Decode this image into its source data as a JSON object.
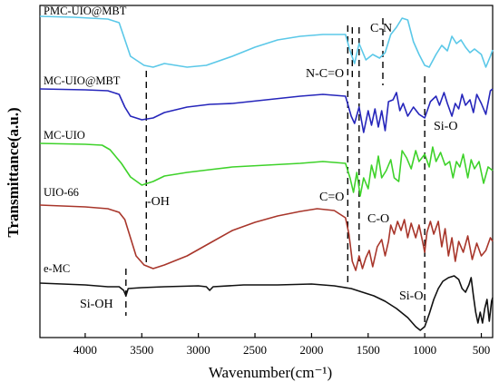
{
  "chart_data": {
    "type": "line",
    "title": "",
    "xlabel": "Wavenumber(cm⁻¹)",
    "ylabel": "Transmittance(a.u.)",
    "xlim": [
      4400,
      400
    ],
    "x_reversed": true,
    "x_ticks": [
      4000,
      3500,
      3000,
      2500,
      2000,
      1500,
      1000,
      500
    ],
    "y_ticks_shown": false,
    "grid": false,
    "legend": "none",
    "series": [
      {
        "name": "PMC-UIO@MBT",
        "color": "#5bc8e8",
        "points": [
          [
            4400,
            18
          ],
          [
            4100,
            19
          ],
          [
            3800,
            21
          ],
          [
            3700,
            25
          ],
          [
            3600,
            62
          ],
          [
            3480,
            72
          ],
          [
            3400,
            74
          ],
          [
            3300,
            70
          ],
          [
            3100,
            74
          ],
          [
            2930,
            72
          ],
          [
            2700,
            62
          ],
          [
            2500,
            52
          ],
          [
            2300,
            44
          ],
          [
            2100,
            40
          ],
          [
            1900,
            38
          ],
          [
            1700,
            38
          ],
          [
            1660,
            56
          ],
          [
            1620,
            70
          ],
          [
            1580,
            48
          ],
          [
            1520,
            66
          ],
          [
            1460,
            60
          ],
          [
            1400,
            64
          ],
          [
            1350,
            58
          ],
          [
            1300,
            38
          ],
          [
            1250,
            30
          ],
          [
            1200,
            20
          ],
          [
            1150,
            22
          ],
          [
            1100,
            46
          ],
          [
            1050,
            60
          ],
          [
            1000,
            72
          ],
          [
            960,
            74
          ],
          [
            900,
            60
          ],
          [
            850,
            50
          ],
          [
            800,
            56
          ],
          [
            760,
            40
          ],
          [
            720,
            48
          ],
          [
            680,
            44
          ],
          [
            640,
            52
          ],
          [
            600,
            58
          ],
          [
            560,
            54
          ],
          [
            500,
            60
          ],
          [
            460,
            74
          ],
          [
            420,
            62
          ],
          [
            400,
            55
          ]
        ]
      },
      {
        "name": "MC-UIO@MBT",
        "color": "#2626bb",
        "points": [
          [
            4400,
            98
          ],
          [
            4000,
            99
          ],
          [
            3800,
            100
          ],
          [
            3700,
            104
          ],
          [
            3650,
            118
          ],
          [
            3600,
            128
          ],
          [
            3500,
            132
          ],
          [
            3400,
            130
          ],
          [
            3300,
            124
          ],
          [
            3100,
            118
          ],
          [
            2900,
            115
          ],
          [
            2700,
            114
          ],
          [
            2400,
            110
          ],
          [
            2100,
            106
          ],
          [
            1900,
            104
          ],
          [
            1700,
            106
          ],
          [
            1650,
            128
          ],
          [
            1620,
            136
          ],
          [
            1580,
            118
          ],
          [
            1540,
            146
          ],
          [
            1500,
            122
          ],
          [
            1470,
            138
          ],
          [
            1440,
            120
          ],
          [
            1410,
            140
          ],
          [
            1380,
            122
          ],
          [
            1350,
            144
          ],
          [
            1320,
            112
          ],
          [
            1280,
            110
          ],
          [
            1250,
            102
          ],
          [
            1220,
            122
          ],
          [
            1190,
            114
          ],
          [
            1150,
            128
          ],
          [
            1100,
            118
          ],
          [
            1050,
            126
          ],
          [
            1000,
            130
          ],
          [
            950,
            112
          ],
          [
            900,
            106
          ],
          [
            870,
            116
          ],
          [
            830,
            102
          ],
          [
            800,
            114
          ],
          [
            760,
            128
          ],
          [
            730,
            114
          ],
          [
            700,
            120
          ],
          [
            670,
            104
          ],
          [
            640,
            116
          ],
          [
            600,
            110
          ],
          [
            570,
            124
          ],
          [
            540,
            104
          ],
          [
            500,
            114
          ],
          [
            460,
            126
          ],
          [
            420,
            100
          ],
          [
            400,
            98
          ]
        ]
      },
      {
        "name": "MC-UIO",
        "color": "#3ed22a",
        "points": [
          [
            4400,
            158
          ],
          [
            4000,
            159
          ],
          [
            3850,
            160
          ],
          [
            3780,
            165
          ],
          [
            3680,
            180
          ],
          [
            3600,
            195
          ],
          [
            3500,
            204
          ],
          [
            3400,
            200
          ],
          [
            3300,
            194
          ],
          [
            3100,
            190
          ],
          [
            2900,
            187
          ],
          [
            2700,
            184
          ],
          [
            2400,
            182
          ],
          [
            2100,
            180
          ],
          [
            1900,
            178
          ],
          [
            1700,
            180
          ],
          [
            1660,
            196
          ],
          [
            1630,
            212
          ],
          [
            1600,
            190
          ],
          [
            1570,
            216
          ],
          [
            1540,
            196
          ],
          [
            1500,
            208
          ],
          [
            1470,
            182
          ],
          [
            1440,
            196
          ],
          [
            1410,
            172
          ],
          [
            1380,
            196
          ],
          [
            1340,
            188
          ],
          [
            1300,
            176
          ],
          [
            1270,
            196
          ],
          [
            1230,
            200
          ],
          [
            1200,
            166
          ],
          [
            1160,
            174
          ],
          [
            1120,
            186
          ],
          [
            1080,
            166
          ],
          [
            1050,
            178
          ],
          [
            1000,
            170
          ],
          [
            960,
            184
          ],
          [
            930,
            162
          ],
          [
            900,
            178
          ],
          [
            860,
            168
          ],
          [
            820,
            182
          ],
          [
            780,
            178
          ],
          [
            750,
            196
          ],
          [
            720,
            178
          ],
          [
            690,
            184
          ],
          [
            660,
            170
          ],
          [
            620,
            196
          ],
          [
            590,
            176
          ],
          [
            560,
            186
          ],
          [
            520,
            178
          ],
          [
            480,
            202
          ],
          [
            440,
            184
          ],
          [
            400,
            188
          ]
        ]
      },
      {
        "name": "UIO-66",
        "color": "#a8362b",
        "points": [
          [
            4400,
            226
          ],
          [
            4000,
            228
          ],
          [
            3800,
            230
          ],
          [
            3700,
            234
          ],
          [
            3650,
            242
          ],
          [
            3600,
            262
          ],
          [
            3550,
            282
          ],
          [
            3480,
            292
          ],
          [
            3400,
            296
          ],
          [
            3300,
            292
          ],
          [
            3100,
            282
          ],
          [
            2900,
            268
          ],
          [
            2700,
            254
          ],
          [
            2500,
            245
          ],
          [
            2300,
            238
          ],
          [
            2100,
            233
          ],
          [
            1950,
            230
          ],
          [
            1800,
            232
          ],
          [
            1700,
            240
          ],
          [
            1670,
            258
          ],
          [
            1640,
            288
          ],
          [
            1610,
            298
          ],
          [
            1580,
            282
          ],
          [
            1550,
            296
          ],
          [
            1520,
            284
          ],
          [
            1490,
            276
          ],
          [
            1460,
            294
          ],
          [
            1420,
            272
          ],
          [
            1380,
            264
          ],
          [
            1350,
            282
          ],
          [
            1320,
            266
          ],
          [
            1300,
            248
          ],
          [
            1270,
            258
          ],
          [
            1240,
            244
          ],
          [
            1210,
            254
          ],
          [
            1180,
            242
          ],
          [
            1150,
            262
          ],
          [
            1120,
            246
          ],
          [
            1080,
            262
          ],
          [
            1050,
            248
          ],
          [
            1020,
            266
          ],
          [
            1000,
            278
          ],
          [
            980,
            256
          ],
          [
            950,
            244
          ],
          [
            920,
            258
          ],
          [
            880,
            244
          ],
          [
            850,
            272
          ],
          [
            820,
            252
          ],
          [
            790,
            282
          ],
          [
            760,
            262
          ],
          [
            730,
            288
          ],
          [
            700,
            266
          ],
          [
            660,
            278
          ],
          [
            620,
            260
          ],
          [
            580,
            286
          ],
          [
            540,
            268
          ],
          [
            500,
            282
          ],
          [
            460,
            276
          ],
          [
            420,
            262
          ],
          [
            400,
            266
          ]
        ]
      },
      {
        "name": "e-MC",
        "color": "#111111",
        "points": [
          [
            4400,
            312
          ],
          [
            4000,
            314
          ],
          [
            3800,
            316
          ],
          [
            3700,
            316
          ],
          [
            3660,
            320
          ],
          [
            3640,
            326
          ],
          [
            3620,
            318
          ],
          [
            3500,
            317
          ],
          [
            3300,
            316
          ],
          [
            3000,
            315
          ],
          [
            2930,
            316
          ],
          [
            2900,
            320
          ],
          [
            2870,
            316
          ],
          [
            2600,
            314
          ],
          [
            2300,
            314
          ],
          [
            2000,
            313
          ],
          [
            1800,
            315
          ],
          [
            1650,
            318
          ],
          [
            1550,
            322
          ],
          [
            1450,
            326
          ],
          [
            1350,
            332
          ],
          [
            1250,
            340
          ],
          [
            1150,
            350
          ],
          [
            1080,
            360
          ],
          [
            1040,
            364
          ],
          [
            1000,
            360
          ],
          [
            960,
            346
          ],
          [
            920,
            330
          ],
          [
            880,
            318
          ],
          [
            840,
            310
          ],
          [
            790,
            306
          ],
          [
            740,
            304
          ],
          [
            700,
            308
          ],
          [
            670,
            318
          ],
          [
            640,
            322
          ],
          [
            610,
            314
          ],
          [
            590,
            306
          ],
          [
            570,
            326
          ],
          [
            550,
            344
          ],
          [
            530,
            356
          ],
          [
            510,
            344
          ],
          [
            490,
            356
          ],
          [
            470,
            340
          ],
          [
            450,
            330
          ],
          [
            430,
            354
          ],
          [
            410,
            332
          ],
          [
            400,
            328
          ]
        ]
      }
    ],
    "annotations": [
      "-OH",
      "C=O",
      "C-O",
      "N-C=O",
      "C-N",
      "Si-O",
      "Si-O",
      "Si-OH"
    ],
    "reference_lines": [
      3640,
      3460,
      1680,
      1640,
      1580,
      1370,
      1000
    ]
  }
}
